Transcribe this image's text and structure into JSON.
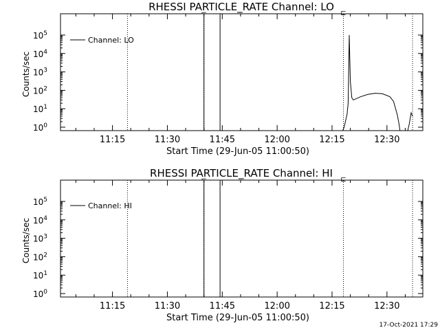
{
  "footer": {
    "timestamp": "17-Oct-2021 17:29"
  },
  "chart_data": [
    {
      "type": "line",
      "title": "RHESSI PARTICLE_RATE Channel: LO",
      "xlabel": "Start Time (29-Jun-05 11:00:50)",
      "ylabel": "Counts/sec",
      "y_scale": "log",
      "ylim": [
        1,
        100000
      ],
      "xlim_minutes": [
        0,
        99
      ],
      "x_tick_labels": [
        "11:15",
        "11:30",
        "11:45",
        "12:00",
        "12:15",
        "12:30"
      ],
      "x_tick_minutes": [
        14.2,
        29.2,
        44.2,
        59.2,
        74.2,
        89.2
      ],
      "y_tick_labels": [
        {
          "base": "10",
          "exp": "0"
        },
        {
          "base": "10",
          "exp": "1"
        },
        {
          "base": "10",
          "exp": "2"
        },
        {
          "base": "10",
          "exp": "3"
        },
        {
          "base": "10",
          "exp": "4"
        },
        {
          "base": "10",
          "exp": "5"
        }
      ],
      "legend": {
        "label": "Channel: LO",
        "placement": "top-left"
      },
      "dotted_vlines_minutes": [
        18.3,
        39.2,
        77.3,
        96.2
      ],
      "solid_vlines_minutes": [
        39.2,
        43.6
      ],
      "markers": [
        {
          "t": 39.2,
          "glyph": "⌐"
        },
        {
          "t": 77.3,
          "glyph": "⊏"
        }
      ],
      "series": [
        {
          "points": [
            [
              76.0,
              0.2
            ],
            [
              77.5,
              1.0
            ],
            [
              78.3,
              5
            ],
            [
              78.6,
              20
            ],
            [
              78.9,
              100000
            ],
            [
              79.2,
              300
            ],
            [
              79.6,
              40
            ],
            [
              80.0,
              30
            ],
            [
              82.0,
              45
            ],
            [
              84.0,
              60
            ],
            [
              86.0,
              70
            ],
            [
              88.0,
              65
            ],
            [
              90.0,
              45
            ],
            [
              91.0,
              25
            ],
            [
              92.0,
              5
            ],
            [
              92.5,
              1.5
            ],
            [
              93.0,
              0.3
            ]
          ]
        },
        {
          "points": [
            [
              94.5,
              0.3
            ],
            [
              95.3,
              1.5
            ],
            [
              95.8,
              6
            ],
            [
              96.2,
              4
            ]
          ]
        }
      ]
    },
    {
      "type": "line",
      "title": "RHESSI PARTICLE_RATE Channel: HI",
      "xlabel": "Start Time (29-Jun-05 11:00:50)",
      "ylabel": "Counts/sec",
      "y_scale": "log",
      "ylim": [
        1,
        100000
      ],
      "xlim_minutes": [
        0,
        99
      ],
      "x_tick_labels": [
        "11:15",
        "11:30",
        "11:45",
        "12:00",
        "12:15",
        "12:30"
      ],
      "x_tick_minutes": [
        14.2,
        29.2,
        44.2,
        59.2,
        74.2,
        89.2
      ],
      "y_tick_labels": [
        {
          "base": "10",
          "exp": "0"
        },
        {
          "base": "10",
          "exp": "1"
        },
        {
          "base": "10",
          "exp": "2"
        },
        {
          "base": "10",
          "exp": "3"
        },
        {
          "base": "10",
          "exp": "4"
        },
        {
          "base": "10",
          "exp": "5"
        }
      ],
      "legend": {
        "label": "Channel: HI",
        "placement": "top-left"
      },
      "dotted_vlines_minutes": [
        18.3,
        39.2,
        77.3,
        96.2
      ],
      "solid_vlines_minutes": [
        39.2,
        43.6
      ],
      "markers": [
        {
          "t": 39.2,
          "glyph": "⌐"
        },
        {
          "t": 77.3,
          "glyph": "⊏"
        }
      ],
      "series": []
    }
  ]
}
